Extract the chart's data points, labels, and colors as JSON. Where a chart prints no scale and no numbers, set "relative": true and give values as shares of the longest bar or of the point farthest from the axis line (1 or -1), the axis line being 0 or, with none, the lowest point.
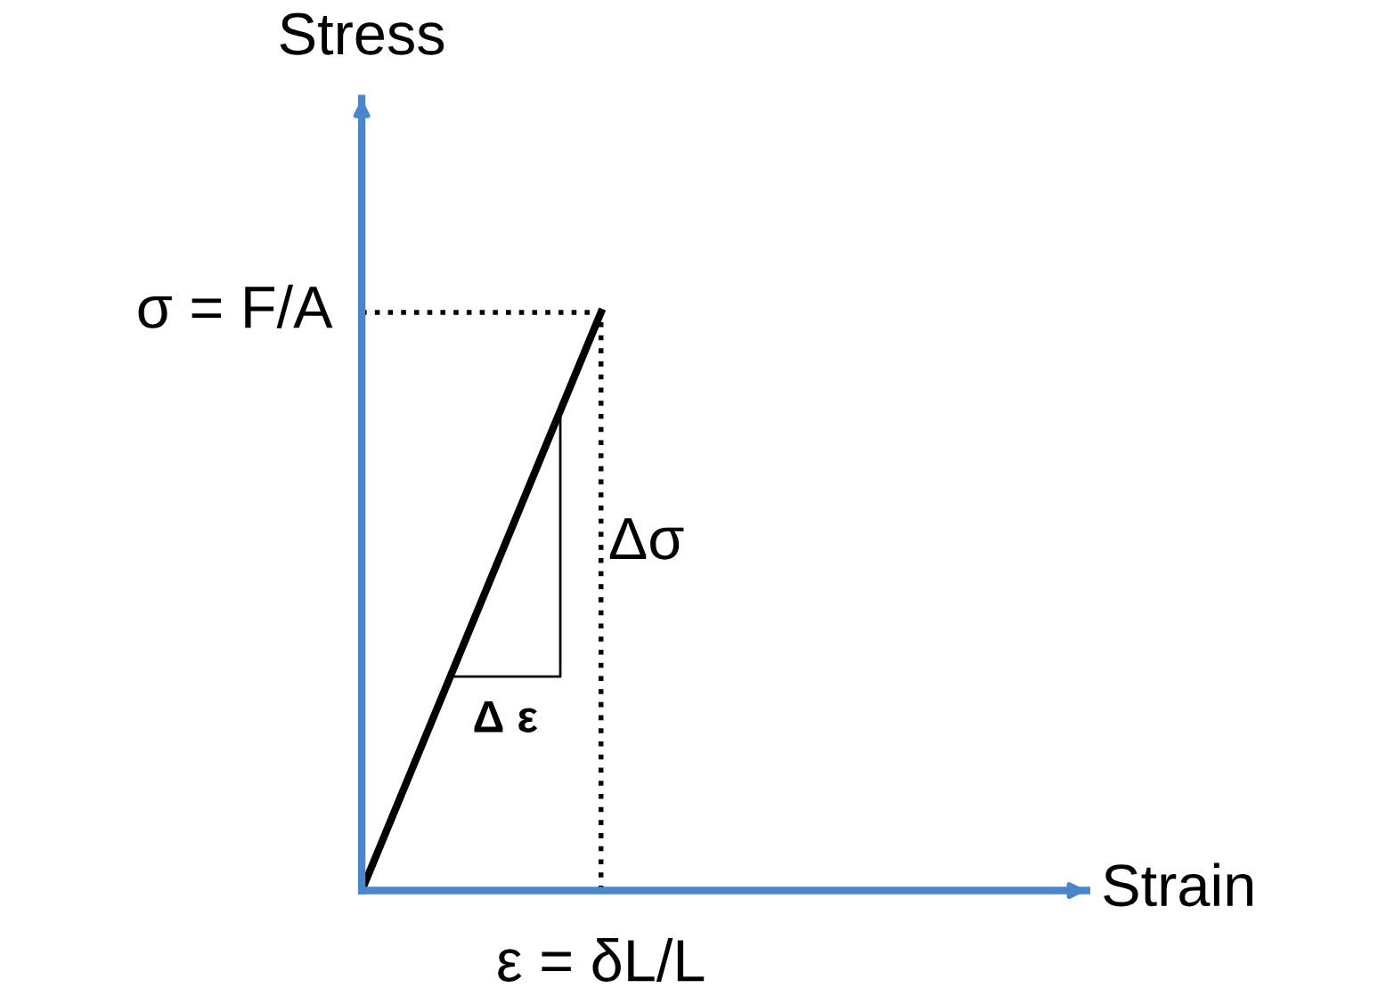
{
  "chart_data": {
    "type": "line",
    "relative": true,
    "xlabel": "Strain",
    "ylabel": "Stress",
    "categories": [
      null,
      null,
      null,
      null
    ],
    "series": [
      {
        "color": "#000000",
        "values": [
          0,
          1,
          null,
          null
        ]
      }
    ],
    "ref_lines": [
      {
        "axis": "y",
        "value": 1,
        "label": "σ = F/A",
        "line_style": "dotted",
        "color": "#000000"
      }
    ],
    "annotations": [
      "Δσ",
      "Δ ε",
      "ε = δL/L"
    ],
    "legend": false,
    "marker": "none",
    "line_style": "solid"
  }
}
